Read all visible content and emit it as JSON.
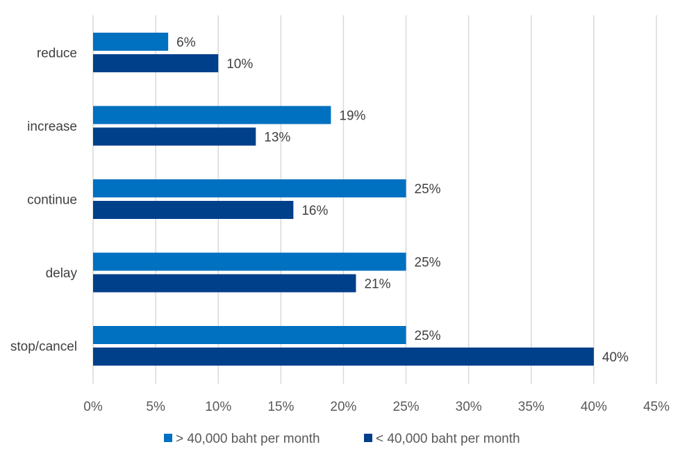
{
  "chart_data": {
    "type": "bar",
    "orientation": "horizontal",
    "title": "",
    "xlabel": "",
    "ylabel": "",
    "categories": [
      "reduce",
      "increase",
      "continue",
      "delay",
      "stop/cancel"
    ],
    "series": [
      {
        "name": "> 40,000 baht per month",
        "values": [
          6,
          19,
          25,
          25,
          25
        ],
        "labels": [
          "6%",
          "19%",
          "25%",
          "25%",
          "25%"
        ],
        "color": "#0070c0"
      },
      {
        "name": "< 40,000 baht per month",
        "values": [
          10,
          13,
          16,
          21,
          40
        ],
        "labels": [
          "10%",
          "13%",
          "16%",
          "21%",
          "40%"
        ],
        "color": "#003f8a"
      }
    ],
    "xlim": [
      0,
      45
    ],
    "x_ticks": [
      0,
      5,
      10,
      15,
      20,
      25,
      30,
      35,
      40,
      45
    ],
    "x_tick_labels": [
      "0%",
      "5%",
      "10%",
      "15%",
      "20%",
      "25%",
      "30%",
      "35%",
      "40%",
      "45%"
    ],
    "grid": true,
    "legend_position": "bottom"
  }
}
